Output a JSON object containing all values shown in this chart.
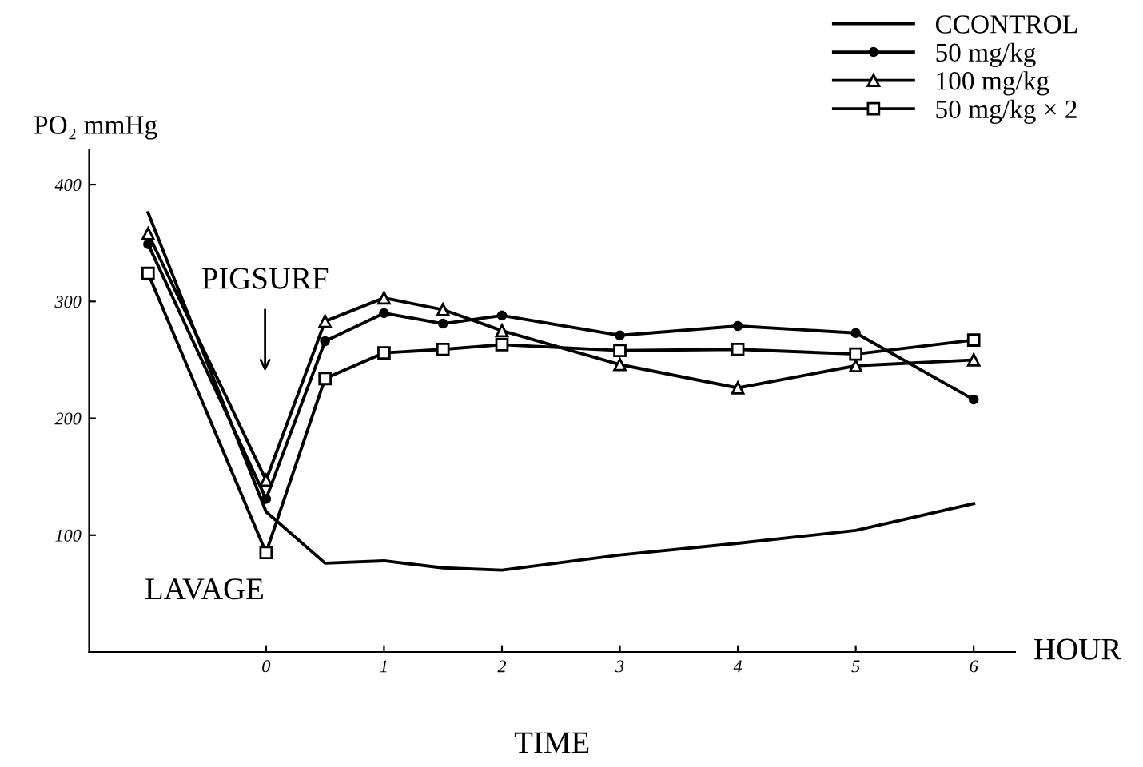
{
  "chart_data": {
    "type": "line",
    "ylabel": "PO₂ mmHg",
    "xlabel": "TIME",
    "x": [
      -1,
      0,
      0.5,
      1,
      1.5,
      2,
      3,
      4,
      5,
      6
    ],
    "series": [
      {
        "name": "CCONTROL",
        "color": "#000000",
        "marker": "none",
        "values": [
          376,
          120,
          76,
          78,
          72,
          70,
          83,
          93,
          104,
          127
        ]
      },
      {
        "name": "50 mg/kg",
        "color": "#000000",
        "marker": "circle",
        "values": [
          349,
          131,
          266,
          290,
          281,
          288,
          271,
          279,
          273,
          216
        ]
      },
      {
        "name": "100 mg/kg",
        "color": "#000000",
        "marker": "triangle",
        "values": [
          358,
          147,
          283,
          303,
          293,
          275,
          246,
          226,
          245,
          250
        ]
      },
      {
        "name": "50 mg/kg × 2",
        "color": "#000000",
        "marker": "square",
        "values": [
          324,
          85,
          234,
          256,
          259,
          263,
          258,
          259,
          255,
          267
        ]
      }
    ],
    "xlim": [
      -1.5,
      6.35
    ],
    "ylim": [
      0,
      430
    ],
    "xticks": [
      0,
      1,
      2,
      3,
      4,
      5,
      6
    ],
    "yticks": [
      100,
      200,
      300,
      400
    ],
    "grid": false,
    "legend": "top right",
    "annotations": [
      "PIGSURF",
      "LAVAGE",
      "HOUR"
    ]
  }
}
